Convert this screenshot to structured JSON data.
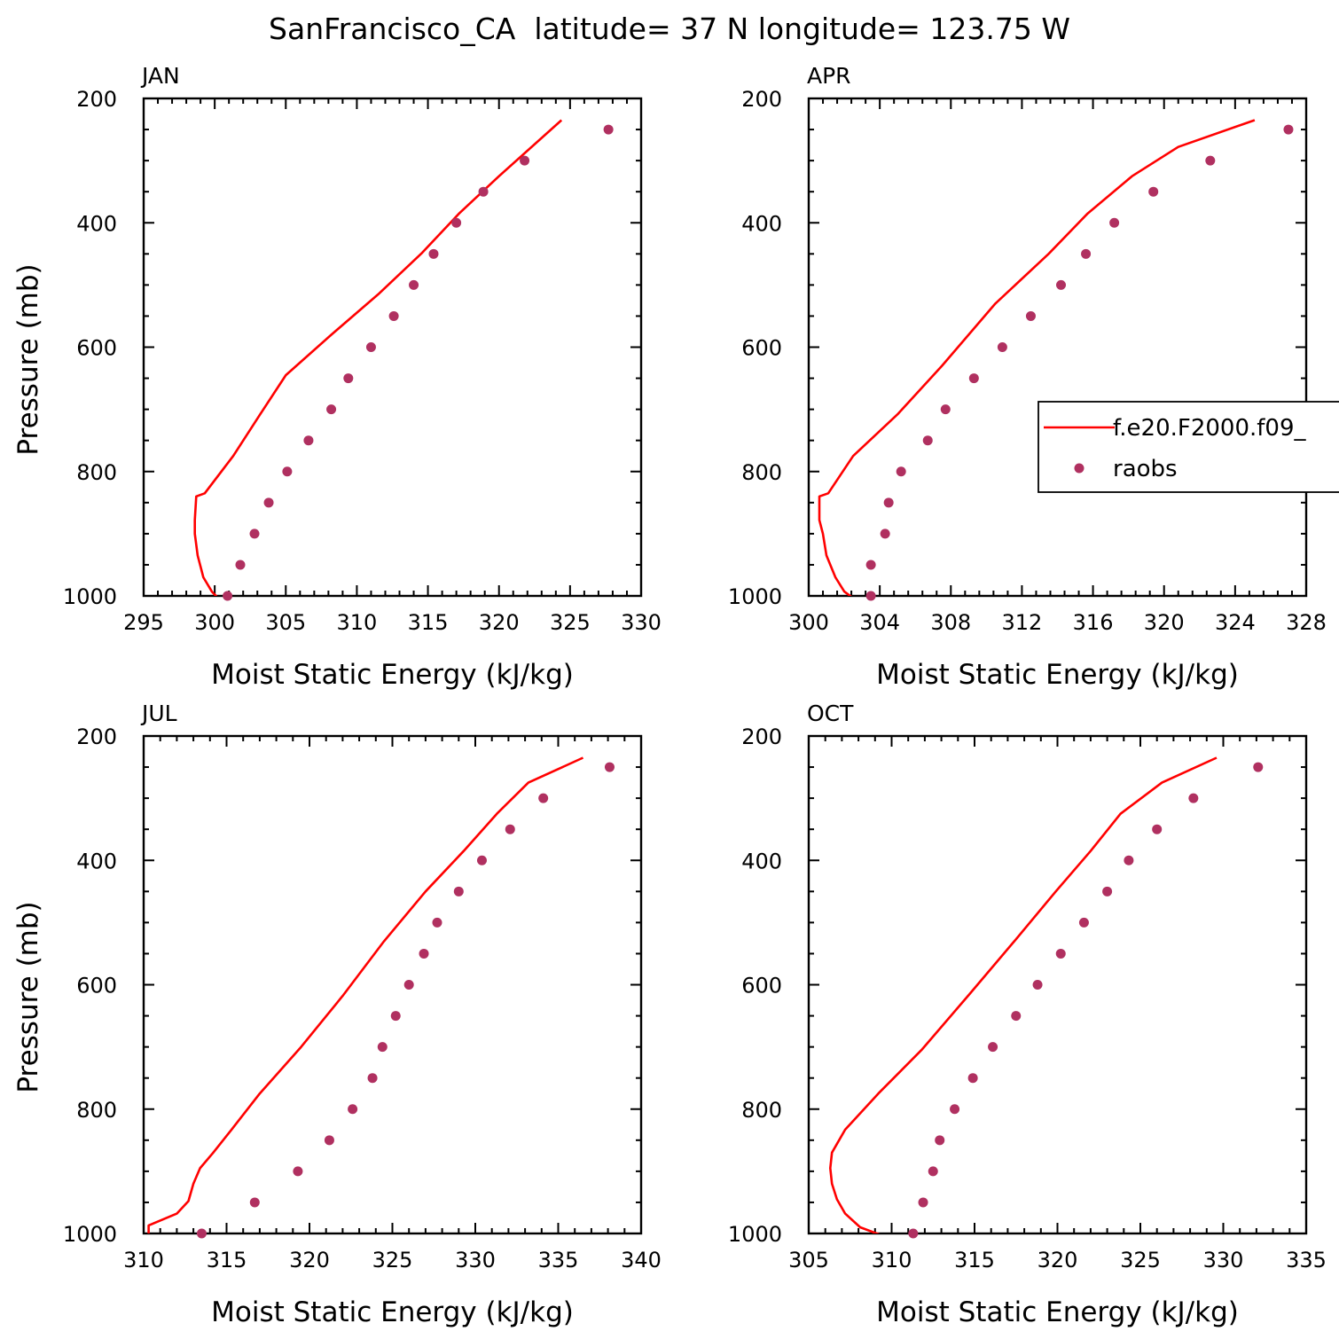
{
  "figure": {
    "title": "SanFrancisco_CA  latitude= 37 N longitude= 123.75 W",
    "colors": {
      "model": "#ff0000",
      "obs": "#b03060",
      "frame": "#000000"
    }
  },
  "chart_data": [
    {
      "type": "line",
      "panel": "JAN",
      "xlabel": "Moist Static Energy (kJ/kg)",
      "ylabel": "Pressure (mb)",
      "xlim": [
        295,
        330
      ],
      "ylim": [
        1000,
        200
      ],
      "xticks": [
        295,
        300,
        305,
        310,
        315,
        320,
        325,
        330
      ],
      "yticks": [
        200,
        400,
        600,
        800,
        1000
      ],
      "series": [
        {
          "kind": "line",
          "x": [
            300.5,
            299.8,
            299.2,
            298.8,
            298.6,
            298.6,
            298.7,
            299.3,
            301.3,
            303.2,
            305.0,
            308.2,
            311.5,
            314.6,
            317.2,
            320.0,
            324.4
          ],
          "y": [
            1010,
            993,
            970,
            935,
            900,
            878,
            840,
            835,
            775,
            708,
            645,
            580,
            515,
            448,
            385,
            325,
            235
          ]
        },
        {
          "kind": "points",
          "x": [
            300.9,
            301.8,
            302.8,
            303.8,
            305.1,
            306.6,
            308.2,
            309.4,
            311.0,
            312.6,
            314.0,
            315.4,
            317.0,
            318.9,
            321.8,
            327.7
          ],
          "y": [
            1000,
            950,
            900,
            850,
            800,
            750,
            700,
            650,
            600,
            550,
            500,
            450,
            400,
            350,
            300,
            250
          ]
        }
      ]
    },
    {
      "type": "line",
      "panel": "APR",
      "xlabel": "Moist Static Energy (kJ/kg)",
      "ylabel": "",
      "xlim": [
        300,
        328
      ],
      "ylim": [
        1000,
        200
      ],
      "xticks": [
        300,
        304,
        308,
        312,
        316,
        320,
        324,
        328
      ],
      "yticks": [
        200,
        400,
        600,
        800,
        1000
      ],
      "series": [
        {
          "name": "f.e20.F2000.f09_",
          "kind": "line",
          "x": [
            302.8,
            302.0,
            301.5,
            301.0,
            300.8,
            300.6,
            300.6,
            301.1,
            302.5,
            305.0,
            307.5,
            310.5,
            313.5,
            315.7,
            318.2,
            320.8,
            325.1
          ],
          "y": [
            1010,
            993,
            970,
            935,
            900,
            878,
            840,
            835,
            775,
            708,
            630,
            530,
            450,
            385,
            325,
            278,
            235
          ]
        },
        {
          "name": "raobs",
          "kind": "points",
          "x": [
            303.5,
            303.5,
            304.3,
            304.5,
            305.2,
            306.7,
            307.7,
            309.3,
            310.9,
            312.5,
            314.2,
            315.6,
            317.2,
            319.4,
            322.6,
            327.0
          ],
          "y": [
            1000,
            950,
            900,
            850,
            800,
            750,
            700,
            650,
            600,
            550,
            500,
            450,
            400,
            350,
            300,
            250
          ]
        }
      ],
      "legend": {
        "placement": "right",
        "entries": [
          "f.e20.F2000.f09_",
          "raobs"
        ]
      }
    },
    {
      "type": "line",
      "panel": "JUL",
      "xlabel": "Moist Static Energy (kJ/kg)",
      "ylabel": "Pressure (mb)",
      "xlim": [
        310,
        340
      ],
      "ylim": [
        1000,
        200
      ],
      "xticks": [
        310,
        315,
        320,
        325,
        330,
        335,
        340
      ],
      "yticks": [
        200,
        400,
        600,
        800,
        1000
      ],
      "series": [
        {
          "kind": "line",
          "x": [
            310.3,
            310.3,
            312.0,
            312.7,
            313.0,
            313.4,
            314.2,
            315.3,
            317.0,
            319.5,
            322.0,
            324.5,
            327.0,
            329.3,
            331.3,
            333.2,
            336.5
          ],
          "y": [
            1005,
            987,
            968,
            948,
            920,
            895,
            870,
            833,
            775,
            700,
            618,
            530,
            450,
            385,
            325,
            275,
            235
          ]
        },
        {
          "kind": "points",
          "x": [
            313.5,
            316.7,
            319.3,
            321.2,
            322.6,
            323.8,
            324.4,
            325.2,
            326.0,
            326.9,
            327.7,
            329.0,
            330.4,
            332.1,
            334.1,
            338.1
          ],
          "y": [
            1000,
            950,
            900,
            850,
            800,
            750,
            700,
            650,
            600,
            550,
            500,
            450,
            400,
            350,
            300,
            250
          ]
        }
      ]
    },
    {
      "type": "line",
      "panel": "OCT",
      "xlabel": "Moist Static Energy (kJ/kg)",
      "ylabel": "",
      "xlim": [
        305,
        335
      ],
      "ylim": [
        1000,
        200
      ],
      "xticks": [
        305,
        310,
        315,
        320,
        325,
        330,
        335
      ],
      "yticks": [
        200,
        400,
        600,
        800,
        1000
      ],
      "series": [
        {
          "kind": "line",
          "x": [
            309.9,
            308.1,
            307.2,
            306.7,
            306.4,
            306.3,
            306.4,
            307.2,
            309.2,
            311.8,
            314.7,
            317.4,
            319.9,
            322.0,
            323.8,
            326.3,
            329.6
          ],
          "y": [
            1008,
            990,
            968,
            945,
            920,
            895,
            870,
            833,
            775,
            705,
            615,
            530,
            450,
            385,
            325,
            275,
            235
          ]
        },
        {
          "kind": "points",
          "x": [
            311.3,
            311.9,
            312.5,
            312.9,
            313.8,
            314.9,
            316.1,
            317.5,
            318.8,
            320.2,
            321.6,
            323.0,
            324.3,
            326.0,
            328.2,
            332.1
          ],
          "y": [
            1000,
            950,
            900,
            850,
            800,
            750,
            700,
            650,
            600,
            550,
            500,
            450,
            400,
            350,
            300,
            250
          ]
        }
      ]
    }
  ]
}
